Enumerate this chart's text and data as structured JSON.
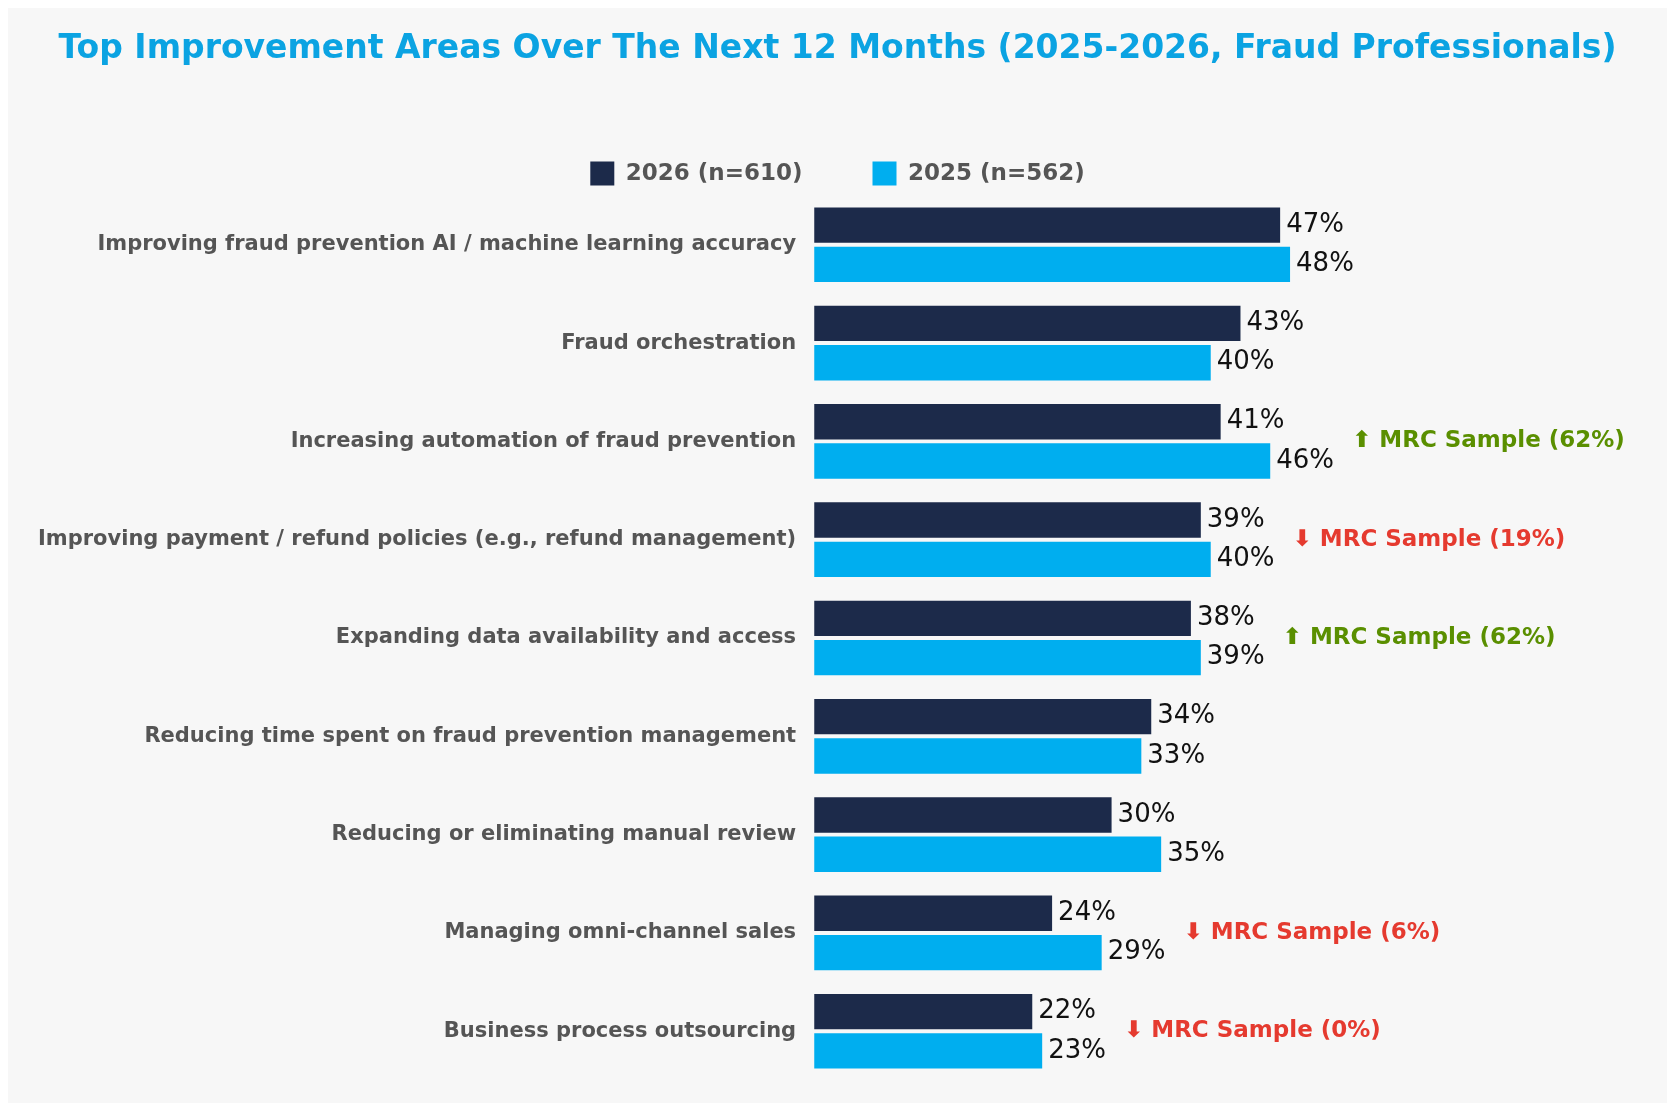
{
  "chart_data": {
    "type": "bar",
    "orientation": "horizontal",
    "title": "Top Improvement Areas Over The Next 12 Months (2025-2026, Fraud Professionals)",
    "categories": [
      "Improving fraud prevention AI / machine learning accuracy",
      "Fraud orchestration",
      "Increasing automation of fraud prevention",
      "Improving payment / refund policies (e.g., refund management)",
      "Expanding data availability and access",
      "Reducing time spent on fraud prevention management",
      "Reducing or eliminating manual review",
      "Managing omni-channel sales",
      "Business process outsourcing"
    ],
    "series": [
      {
        "name": "2026 (n=610)",
        "color": "#1c2a4a",
        "values": [
          47,
          43,
          41,
          39,
          38,
          34,
          30,
          24,
          22
        ],
        "value_labels": [
          "47%",
          "43%",
          "41%",
          "39%",
          "38%",
          "34%",
          "30%",
          "24%",
          "22%"
        ]
      },
      {
        "name": "2025 (n=562)",
        "color": "#00aeef",
        "values": [
          48,
          40,
          46,
          40,
          39,
          33,
          35,
          29,
          23
        ],
        "value_labels": [
          "48%",
          "40%",
          "46%",
          "40%",
          "39%",
          "33%",
          "35%",
          "29%",
          "23%"
        ]
      }
    ],
    "legend": "top",
    "tick_labels": "y",
    "annotations": [
      "⬆ MRC Sample (62%)",
      "⬇ MRC Sample (19%)",
      "⬆ MRC Sample (62%)",
      "⬇ MRC Sample (6%)",
      "⬇ MRC Sample (0%)"
    ]
  }
}
